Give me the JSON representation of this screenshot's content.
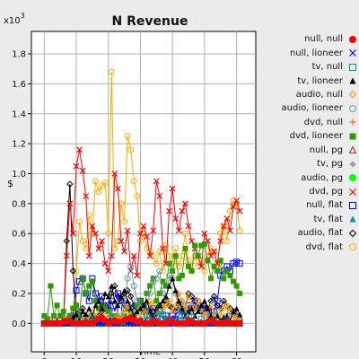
{
  "chart_data": {
    "type": "line",
    "title": "N Revenue",
    "xlabel": "Time",
    "ylabel": "$",
    "y_exponent_label": "x10",
    "y_exponent_power": "3",
    "xlim": [
      -4,
      66
    ],
    "ylim": [
      -0.19,
      1.95
    ],
    "x_ticks": [
      0,
      10,
      20,
      30,
      40,
      50,
      60
    ],
    "y_ticks": [
      0.0,
      0.2,
      0.4,
      0.6,
      0.8,
      1.0,
      1.2,
      1.4,
      1.6,
      1.8
    ],
    "y_tick_labels": [
      "0.0",
      "0.2",
      "0.4",
      "0.6",
      "0.8",
      "1.0",
      "1.2",
      "1.4",
      "1.6",
      "1.8"
    ],
    "grid": true,
    "legend_position": "right",
    "x": [
      0,
      1,
      2,
      3,
      4,
      5,
      6,
      7,
      8,
      9,
      10,
      11,
      12,
      13,
      14,
      15,
      16,
      17,
      18,
      19,
      20,
      21,
      22,
      23,
      24,
      25,
      26,
      27,
      28,
      29,
      30,
      31,
      32,
      33,
      34,
      35,
      36,
      37,
      38,
      39,
      40,
      41,
      42,
      43,
      44,
      45,
      46,
      47,
      48,
      49,
      50,
      51,
      52,
      53,
      54,
      55,
      56,
      57,
      58,
      59,
      60,
      61
    ],
    "series": [
      {
        "name": "null, null",
        "marker": "circle-filled",
        "color": "#ff0000",
        "values": [
          0,
          0,
          0,
          0,
          0,
          0,
          0.01,
          0.01,
          0.02,
          0,
          0,
          0,
          0,
          0.01,
          0,
          0,
          0.02,
          0.03,
          0.04,
          0.02,
          0,
          0.01,
          0.02,
          0.01,
          0.01,
          0.02,
          0.03,
          0.04,
          0.02,
          0.01,
          0.02,
          0,
          0,
          0,
          0.02,
          0.01,
          0,
          0,
          0,
          0.02,
          0.01,
          0,
          0,
          0,
          0,
          0.02,
          0.01,
          0,
          0,
          0,
          0,
          0.01,
          0.02,
          0.01,
          0,
          0,
          0,
          0.01,
          0,
          0,
          0,
          0
        ]
      },
      {
        "name": "null, lioneer",
        "marker": "x",
        "color": "#0000ff",
        "values": [
          0,
          0,
          0,
          0,
          0,
          0,
          0,
          0,
          0,
          0,
          0,
          0,
          0,
          0,
          0,
          0,
          0,
          0,
          0,
          0,
          0.02,
          0,
          0,
          0,
          0,
          0.01,
          0,
          0,
          0,
          0,
          0,
          0.01,
          0,
          0,
          0,
          0,
          0,
          0,
          0,
          0,
          0,
          0.01,
          0,
          0,
          0,
          0,
          0,
          0,
          0,
          0,
          0,
          0,
          0,
          0,
          0,
          0,
          0,
          0,
          0,
          0,
          0,
          0
        ]
      },
      {
        "name": "tv, null",
        "marker": "square",
        "color": "#009999",
        "values": [
          0,
          0,
          0,
          0,
          0,
          0,
          0,
          0,
          0,
          0,
          0,
          0.02,
          0,
          0,
          0,
          0.05,
          0,
          0,
          0,
          0,
          0,
          0.03,
          0,
          0,
          0.01,
          0,
          0,
          0,
          0.02,
          0,
          0,
          0,
          0.05,
          0.02,
          0,
          0.04,
          0.08,
          0.06,
          0.02,
          0.03,
          0,
          0.01,
          0.02,
          0,
          0.05,
          0.02,
          0.04,
          0,
          0,
          0.03,
          0,
          0,
          0,
          0.02,
          0,
          0,
          0,
          0.02,
          0,
          0,
          0,
          0
        ]
      },
      {
        "name": "tv, lioneer",
        "marker": "triangle-filled",
        "color": "#000000",
        "values": [
          0,
          0,
          0,
          0,
          0,
          0,
          0,
          0,
          0,
          0.04,
          0.06,
          0.02,
          0.08,
          0.06,
          0.1,
          0.05,
          0.12,
          0.15,
          0.1,
          0.2,
          0.18,
          0.25,
          0.15,
          0.12,
          0.18,
          0.22,
          0.15,
          0.1,
          0.05,
          0.08,
          0.1,
          0.12,
          0.15,
          0.08,
          0.05,
          0.1,
          0.12,
          0.15,
          0.18,
          0.25,
          0.3,
          0.22,
          0.15,
          0.1,
          0.05,
          0.08,
          0.1,
          0.05,
          0.08,
          0.12,
          0.15,
          0.1,
          0.05,
          0.03,
          0.05,
          0.02,
          0.04,
          0.05,
          0.02,
          0.08,
          0.1,
          0.06
        ]
      },
      {
        "name": "audio, null",
        "marker": "diamond",
        "color": "#ff9900",
        "values": [
          0,
          0,
          0,
          0,
          0,
          0,
          0,
          0,
          0,
          0,
          0.02,
          0,
          0,
          0.03,
          0.05,
          0.08,
          0.03,
          0.06,
          0.02,
          0.05,
          0.04,
          0.02,
          0.03,
          0.05,
          0.02,
          0.08,
          0.12,
          0.06,
          0.03,
          0.05,
          0.1,
          0.08,
          0.05,
          0.15,
          0.12,
          0.08,
          0.05,
          0.1,
          0.12,
          0.15,
          0.08,
          0.12,
          0.2,
          0.15,
          0.1,
          0.18,
          0.12,
          0.08,
          0.15,
          0.1,
          0.05,
          0.08,
          0.12,
          0.05,
          0.03,
          0.06,
          0.1,
          0.12,
          0.08,
          0.05,
          0.03,
          0.02
        ]
      },
      {
        "name": "audio, lioneer",
        "marker": "circle",
        "color": "#669999",
        "values": [
          0,
          0,
          0,
          0,
          0,
          0,
          0,
          0,
          0,
          0,
          0,
          0,
          0.02,
          0,
          0,
          0.01,
          0,
          0,
          0,
          0,
          0.03,
          0.05,
          0.02,
          0.02,
          0.05,
          0.12,
          0.3,
          0.38,
          0.25,
          0.15,
          0.1,
          0.05,
          0.12,
          0.2,
          0.28,
          0.3,
          0.35,
          0.2,
          0.15,
          0.32,
          0.3,
          0.2,
          0.05,
          0.1,
          0.12,
          0.08,
          0.05,
          0.1,
          0.15,
          0.12,
          0.05,
          0.08,
          0.03,
          0.05,
          0.08,
          0.04,
          0.02,
          0.05,
          0.08,
          0.03,
          0.05,
          0.02
        ]
      },
      {
        "name": "dvd, null",
        "marker": "plus",
        "color": "#ff6633",
        "values": [
          0,
          0,
          0,
          0,
          0,
          0,
          0,
          0,
          0,
          0,
          0,
          0,
          0,
          0,
          0,
          0,
          0,
          0,
          0,
          0,
          0,
          0.02,
          0,
          0,
          0,
          0,
          0,
          0,
          0.03,
          0,
          0,
          0,
          0,
          0,
          0,
          0,
          0,
          0,
          0,
          0,
          0.02,
          0,
          0,
          0,
          0,
          0,
          0,
          0,
          0,
          0,
          0,
          0,
          0,
          0,
          0,
          0,
          0,
          0,
          0,
          0,
          0,
          0
        ]
      },
      {
        "name": "dvd, lioneer",
        "marker": "square-filled",
        "color": "#339900",
        "values": [
          0.05,
          0.03,
          0.25,
          0.05,
          0.12,
          0.05,
          0.08,
          0.02,
          0.05,
          0.1,
          0.12,
          0.05,
          0.3,
          0.2,
          0.25,
          0.28,
          0.15,
          0.1,
          0.12,
          0.1,
          0.08,
          0.05,
          0.05,
          0.04,
          0.03,
          0.05,
          0.1,
          0.08,
          0.05,
          0.12,
          0.15,
          0.08,
          0.2,
          0.25,
          0.3,
          0.15,
          0.2,
          0.28,
          0.25,
          0.4,
          0.35,
          0.45,
          0.3,
          0.32,
          0.5,
          0.38,
          0.35,
          0.52,
          0.45,
          0.52,
          0.53,
          0.42,
          0.3,
          0.38,
          0.35,
          0.42,
          0.3,
          0.35,
          0.32,
          0.28,
          0.25,
          0.2
        ]
      },
      {
        "name": "null, pg",
        "marker": "triangle",
        "color": "#993333",
        "values": [
          0,
          0,
          0,
          0,
          0,
          0,
          0,
          0,
          0,
          0,
          0,
          0,
          0,
          0,
          0,
          0,
          0,
          0,
          0,
          0,
          0,
          0,
          0,
          0,
          0,
          0,
          0,
          0,
          0,
          0,
          0,
          0,
          0,
          0,
          0,
          0,
          0,
          0,
          0,
          0,
          0,
          0,
          0,
          0,
          0,
          0,
          0,
          0,
          0,
          0,
          0,
          0,
          0,
          0,
          0,
          0,
          0,
          0,
          0,
          0,
          0,
          0
        ]
      },
      {
        "name": "tv, pg",
        "marker": "diamond-filled",
        "color": "#999999",
        "values": [
          0,
          0,
          0,
          0,
          0,
          0,
          0,
          0,
          0,
          0,
          0,
          0,
          0,
          0,
          0,
          0,
          0,
          0,
          0,
          0,
          0,
          0,
          0,
          0,
          0,
          0,
          0,
          0,
          0,
          0,
          0,
          0,
          0,
          0,
          0,
          0,
          0,
          0,
          0,
          0,
          0,
          0,
          0,
          0,
          0,
          0,
          0,
          0,
          0,
          0,
          0,
          0,
          0,
          0,
          0,
          0,
          0,
          0,
          0,
          0,
          0,
          0
        ]
      },
      {
        "name": "audio, pg",
        "marker": "circle-filled",
        "color": "#00ff00",
        "values": [
          0,
          0,
          0,
          0,
          0,
          0,
          0,
          0,
          0,
          0,
          0,
          0,
          0,
          0,
          0,
          0,
          0,
          0,
          0,
          0,
          0,
          0,
          0,
          0,
          0,
          0,
          0,
          0,
          0,
          0,
          0,
          0,
          0,
          0,
          0,
          0,
          0,
          0,
          0,
          0,
          0,
          0,
          0,
          0,
          0,
          0,
          0,
          0,
          0,
          0,
          0,
          0,
          0,
          0,
          0,
          0,
          0,
          0,
          0,
          0,
          0,
          0
        ]
      },
      {
        "name": "dvd, pg",
        "marker": "x",
        "color": "#ff0000",
        "values": [
          0,
          0.02,
          0,
          0.05,
          0.03,
          0,
          0.02,
          0.45,
          0.8,
          0.6,
          1.05,
          1.16,
          1.02,
          0.85,
          0.45,
          0.65,
          0.6,
          0.5,
          0.55,
          0.4,
          0.35,
          0.45,
          1.0,
          0.9,
          0.55,
          0.48,
          0.62,
          0.35,
          0.45,
          0.32,
          0.6,
          0.65,
          0.58,
          0.45,
          0.62,
          0.95,
          0.85,
          0.5,
          0.4,
          0.75,
          0.9,
          0.7,
          0.62,
          0.75,
          0.8,
          0.65,
          0.55,
          0.5,
          0.45,
          0.38,
          0.6,
          0.55,
          0.45,
          0.48,
          0.4,
          0.55,
          0.65,
          0.7,
          0.62,
          0.78,
          0.82,
          0.75
        ]
      },
      {
        "name": "null, flat",
        "marker": "square",
        "color": "#0000ff",
        "values": [
          0,
          0,
          0,
          0,
          0,
          0,
          0,
          0,
          0.03,
          0.05,
          0.22,
          0.28,
          0.3,
          0.2,
          0.15,
          0.3,
          0.2,
          0.15,
          0.18,
          0.1,
          0.12,
          0.15,
          0.08,
          0.2,
          0.15,
          0.1,
          0.12,
          0.1,
          0.05,
          0.12,
          0.15,
          0.1,
          0.08,
          0.05,
          0.1,
          0.05,
          0.08,
          0.03,
          0.05,
          0.02,
          0.05,
          0.03,
          0.05,
          0.08,
          0.05,
          0.12,
          0.1,
          0.15,
          0.12,
          0.1,
          0.08,
          0.1,
          0.05,
          0.08,
          0.15,
          0.32,
          0.35,
          0.38,
          0.35,
          0.4,
          0.41,
          0.4
        ]
      },
      {
        "name": "tv, flat",
        "marker": "triangle-filled",
        "color": "#009999",
        "values": [
          0,
          0,
          0,
          0,
          0,
          0,
          0,
          0,
          0,
          0,
          0,
          0,
          0,
          0,
          0,
          0,
          0,
          0,
          0,
          0.02,
          0,
          0,
          0,
          0,
          0,
          0,
          0,
          0,
          0,
          0,
          0.02,
          0,
          0,
          0,
          0,
          0,
          0,
          0,
          0.03,
          0,
          0,
          0,
          0,
          0,
          0,
          0,
          0,
          0,
          0,
          0,
          0,
          0.02,
          0,
          0,
          0,
          0,
          0,
          0,
          0,
          0,
          0,
          0
        ]
      },
      {
        "name": "audio, flat",
        "marker": "diamond",
        "color": "#000000",
        "values": [
          0,
          0,
          0,
          0,
          0,
          0,
          0,
          0.55,
          0.93,
          0.35,
          0.05,
          0.08,
          0.1,
          0.05,
          0.03,
          0.02,
          0.02,
          0.05,
          0.08,
          0.12,
          0.1,
          0.2,
          0.25,
          0.18,
          0.15,
          0.2,
          0.22,
          0.18,
          0.12,
          0.1,
          0.15,
          0.12,
          0.08,
          0.1,
          0.05,
          0.08,
          0.12,
          0.1,
          0.15,
          0.12,
          0.1,
          0.08,
          0.12,
          0.15,
          0.1,
          0.2,
          0.18,
          0.15,
          0.1,
          0.08,
          0.12,
          0.1,
          0.15,
          0.18,
          0.12,
          0.1,
          0.15,
          0.12,
          0.1,
          0.08,
          0.05,
          0.03
        ]
      },
      {
        "name": "dvd, flat",
        "marker": "circle",
        "color": "#ffaa00",
        "values": [
          0,
          0,
          0,
          0,
          0,
          0,
          0,
          0,
          0.05,
          0.1,
          0.35,
          0.68,
          0.55,
          0.5,
          0.72,
          0.6,
          0.95,
          0.88,
          0.92,
          0.94,
          0.6,
          1.68,
          0.5,
          0.55,
          0.8,
          0.68,
          1.25,
          1.16,
          0.95,
          0.85,
          0.55,
          0.6,
          0.5,
          0.48,
          0.45,
          0.4,
          0.48,
          0.35,
          0.52,
          0.45,
          0.4,
          0.5,
          0.38,
          0.45,
          0.6,
          0.42,
          0.35,
          0.45,
          0.38,
          0.42,
          0.35,
          0.45,
          0.5,
          0.48,
          0.38,
          0.6,
          0.65,
          0.55,
          0.75,
          0.82,
          0.8,
          0.62
        ]
      }
    ]
  }
}
